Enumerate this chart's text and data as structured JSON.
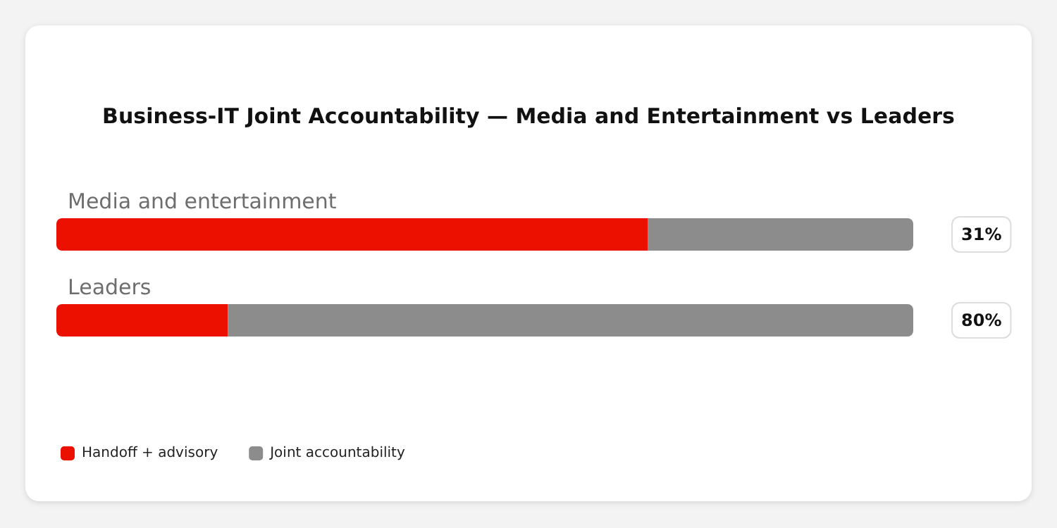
{
  "chart_data": {
    "type": "bar",
    "orientation": "horizontal",
    "stacked": true,
    "xlim": [
      0,
      100
    ],
    "tick_labels": false,
    "title": "Business-IT Joint Accountability — Media and Entertainment vs Leaders",
    "categories": [
      "Media and entertainment",
      "Leaders"
    ],
    "series": [
      {
        "name": "Handoff + advisory",
        "color": "#eb1000",
        "values": [
          69,
          20
        ]
      },
      {
        "name": "Joint accountability",
        "color": "#8c8c8c",
        "values": [
          31,
          80
        ],
        "value_labels": [
          "31%",
          "80%"
        ]
      }
    ],
    "legend": "bottom left"
  }
}
